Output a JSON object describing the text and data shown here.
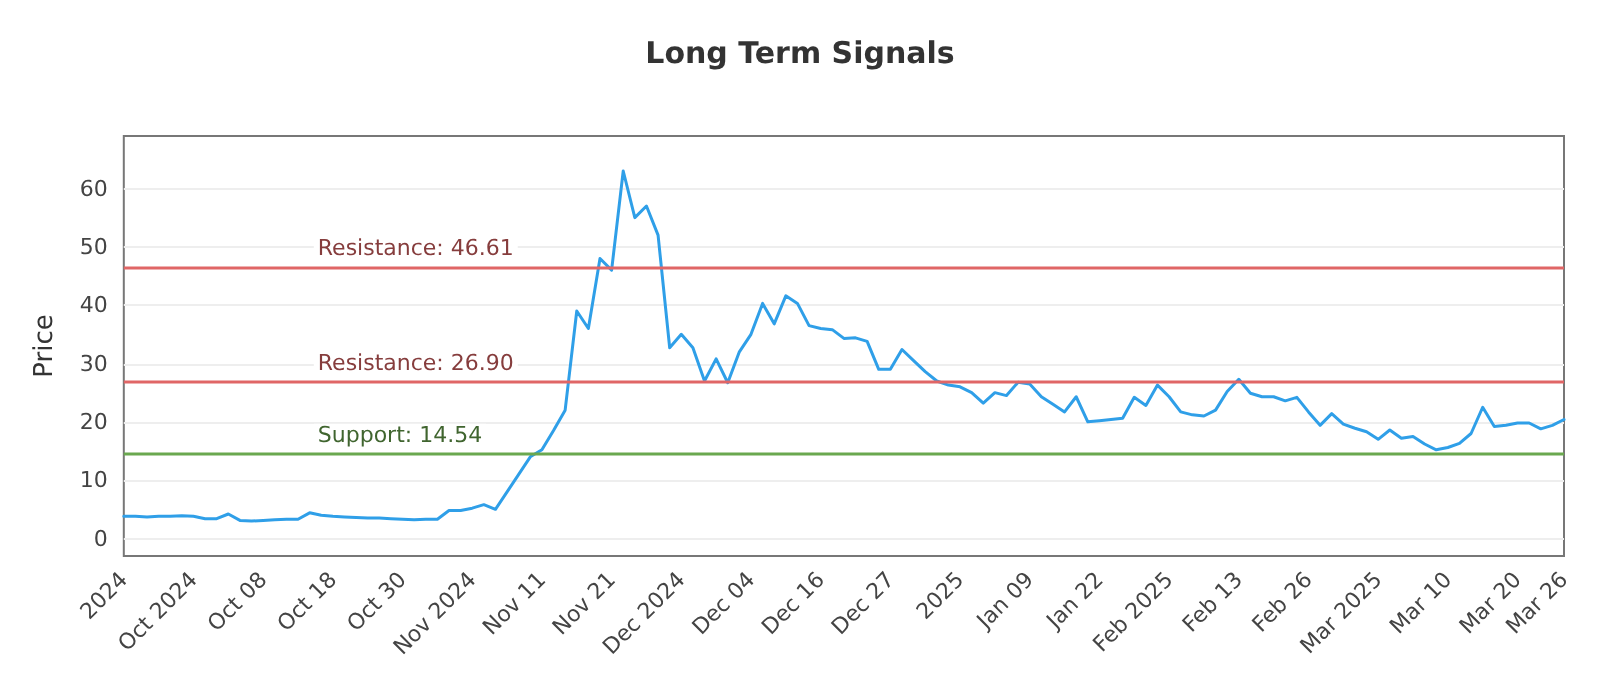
{
  "chart_data": {
    "type": "line",
    "title": "Long Term Signals",
    "ylabel": "Price",
    "categories": [
      "2024",
      null,
      null,
      null,
      null,
      null,
      "Oct 2024",
      null,
      null,
      null,
      null,
      null,
      "Oct 08",
      null,
      null,
      null,
      null,
      null,
      "Oct 18",
      null,
      null,
      null,
      null,
      null,
      "Oct 30",
      null,
      null,
      null,
      null,
      null,
      "Nov 2024",
      null,
      null,
      null,
      null,
      null,
      "Nov 11",
      null,
      null,
      null,
      null,
      null,
      "Nov 21",
      null,
      null,
      null,
      null,
      null,
      "Dec 2024",
      null,
      null,
      null,
      null,
      null,
      "Dec 04",
      null,
      null,
      null,
      null,
      null,
      "Dec 16",
      null,
      null,
      null,
      null,
      null,
      "Dec 27",
      null,
      null,
      null,
      null,
      null,
      "2025",
      null,
      null,
      null,
      null,
      null,
      "Jan 09",
      null,
      null,
      null,
      null,
      null,
      "Jan 22",
      null,
      null,
      null,
      null,
      null,
      "Feb 2025",
      null,
      null,
      null,
      null,
      null,
      "Feb 13",
      null,
      null,
      null,
      null,
      null,
      "Feb 26",
      null,
      null,
      null,
      null,
      null,
      "Mar 2025",
      null,
      null,
      null,
      null,
      null,
      "Mar 10",
      null,
      null,
      null,
      null,
      null,
      "Mar 20",
      null,
      null,
      null,
      "Mar 26"
    ],
    "series": [
      {
        "color": "#2f9fe8",
        "values": [
          3.8,
          3.8,
          3.7,
          3.8,
          3.8,
          3.9,
          3.8,
          3.4,
          3.4,
          4.2,
          3.1,
          3.0,
          3.1,
          3.2,
          3.3,
          3.3,
          4.4,
          4.0,
          3.8,
          3.7,
          3.6,
          3.5,
          3.5,
          3.4,
          3.3,
          3.2,
          3.3,
          3.3,
          4.8,
          4.8,
          5.2,
          5.8,
          5.0,
          8,
          11,
          14,
          15.2,
          18.5,
          22,
          39,
          36,
          48,
          46,
          63,
          55,
          57,
          52,
          32.7,
          35,
          32.7,
          27,
          30.8,
          26.7,
          32,
          35,
          40.3,
          36.8,
          41.6,
          40.3,
          36.5,
          36,
          35.8,
          34.3,
          34.4,
          33.8,
          29,
          29,
          32.4,
          30.5,
          28.6,
          27,
          26.3,
          26,
          25,
          23.2,
          25,
          24.5,
          26.8,
          26.5,
          24.3,
          23,
          21.7,
          24.3,
          20,
          20.2,
          20.4,
          20.6,
          24.2,
          22.8,
          26.3,
          24.3,
          21.7,
          21.2,
          21,
          22,
          25.2,
          27.3,
          24.9,
          24.3,
          24.3,
          23.6,
          24.2,
          21.7,
          19.4,
          21.4,
          19.6,
          18.9,
          18.3,
          17,
          18.6,
          17.2,
          17.5,
          16.2,
          15.2,
          15.6,
          16.3,
          18,
          22.5,
          19.2,
          19.4,
          19.8,
          19.8,
          18.8,
          19.4,
          20.4
        ]
      }
    ],
    "ylim": [
      -3,
      69
    ],
    "yticks": [
      0,
      10,
      20,
      30,
      40,
      50,
      60
    ],
    "grid": "y",
    "marker": "none",
    "line_style": "solid",
    "ref_lines": [
      {
        "axis": "y",
        "value": 46.61,
        "label": "Resistance: 46.61",
        "color": "#e06666"
      },
      {
        "axis": "y",
        "value": 26.9,
        "label": "Resistance: 26.90",
        "color": "#e06666"
      },
      {
        "axis": "y",
        "value": 14.54,
        "label": "Support: 14.54",
        "color": "#6aa84f"
      }
    ]
  }
}
